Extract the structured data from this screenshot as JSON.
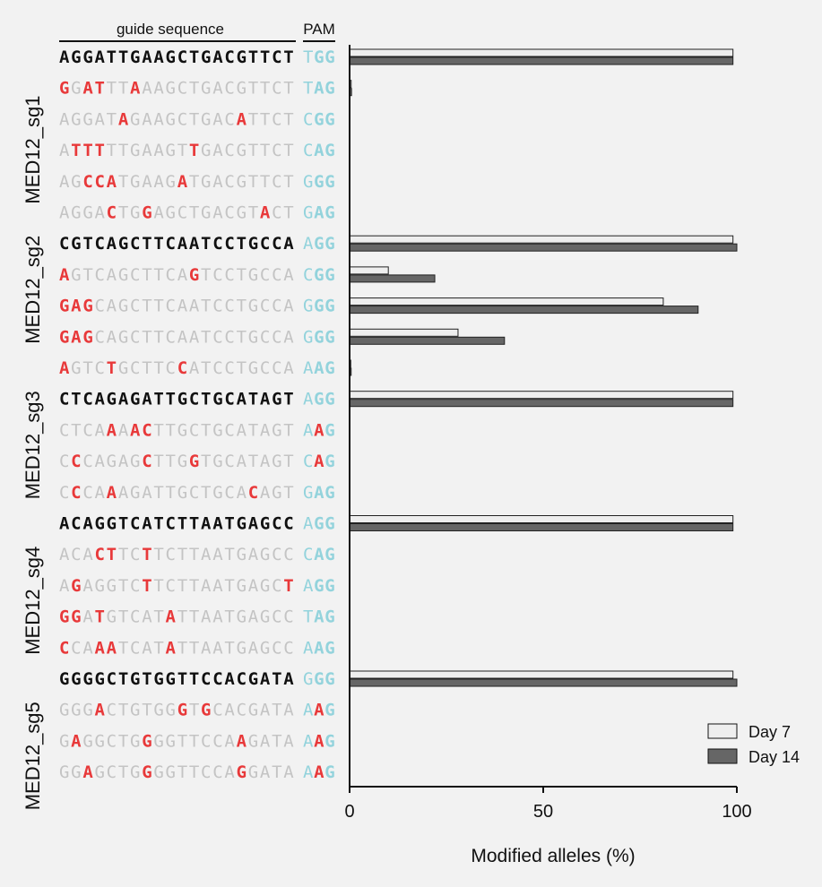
{
  "chart_data": {
    "type": "bar",
    "header": {
      "guide": "guide sequence",
      "pam": "PAM"
    },
    "xlabel": "Modified alleles (%)",
    "xlim": [
      0,
      100
    ],
    "xticks": [
      "0",
      "50",
      "100"
    ],
    "legend": {
      "position": "bottom-right",
      "entries": [
        "Day 7",
        "Day 14"
      ]
    },
    "colors": {
      "day7": "#eeeeee",
      "day14": "#666666",
      "mismatch": "#e8393a",
      "pam": "#93d3dc",
      "target": "#111111",
      "offtarget": "#c4c4c4"
    },
    "groups": [
      "MED12_sg1",
      "MED12_sg2",
      "MED12_sg3",
      "MED12_sg4",
      "MED12_sg5"
    ],
    "series": [
      {
        "name": "Day 7",
        "values": [
          99,
          0.4,
          0,
          0,
          0,
          0,
          99,
          10,
          81,
          28,
          0.3,
          99,
          0,
          0,
          0,
          99,
          0,
          0,
          0,
          0,
          99,
          0,
          0,
          0
        ]
      },
      {
        "name": "Day 14",
        "values": [
          99,
          0.5,
          0,
          0,
          0,
          0,
          100,
          22,
          90,
          40,
          0.4,
          99,
          0,
          0,
          0,
          99,
          0,
          0,
          0,
          0,
          100,
          0,
          0,
          0
        ]
      }
    ],
    "rows": [
      {
        "seq": "AGGATTGAAGCTGACGTTCT",
        "pam": "TGG",
        "target": true,
        "mm": [],
        "pam_mm": []
      },
      {
        "seq": "GGATTTAAAGCTGACGTTCT",
        "pam": "TAG",
        "target": false,
        "mm": [
          0,
          2,
          3,
          6
        ],
        "pam_mm": []
      },
      {
        "seq": "AGGATAGAAGCTGACATTCT",
        "pam": "CGG",
        "target": false,
        "mm": [
          5,
          15
        ],
        "pam_mm": []
      },
      {
        "seq": "ATTTTTGAAGTTGACGTTCT",
        "pam": "CAG",
        "target": false,
        "mm": [
          1,
          2,
          3,
          11
        ],
        "pam_mm": []
      },
      {
        "seq": "AGCCATGAAGATGACGTTCT",
        "pam": "GGG",
        "target": false,
        "mm": [
          2,
          3,
          4,
          10
        ],
        "pam_mm": []
      },
      {
        "seq": "AGGACTGGAGCTGACGTACT",
        "pam": "GAG",
        "target": false,
        "mm": [
          4,
          7,
          17
        ],
        "pam_mm": []
      },
      {
        "seq": "CGTCAGCTTCAATCCTGCCA",
        "pam": "AGG",
        "target": true,
        "mm": [],
        "pam_mm": []
      },
      {
        "seq": "AGTCAGCTTCAGTCCTGCCA",
        "pam": "CGG",
        "target": false,
        "mm": [
          0,
          11
        ],
        "pam_mm": []
      },
      {
        "seq": "GAGCAGCTTCAATCCTGCCA",
        "pam": "GGG",
        "target": false,
        "mm": [
          0,
          1,
          2
        ],
        "pam_mm": []
      },
      {
        "seq": "GAGCAGCTTCAATCCTGCCA",
        "pam": "GGG",
        "target": false,
        "mm": [
          0,
          1,
          2
        ],
        "pam_mm": []
      },
      {
        "seq": "AGTCTGCTTCCATCCTGCCA",
        "pam": "AAG",
        "target": false,
        "mm": [
          0,
          4,
          10
        ],
        "pam_mm": []
      },
      {
        "seq": "CTCAGAGATTGCTGCATAGT",
        "pam": "AGG",
        "target": true,
        "mm": [],
        "pam_mm": []
      },
      {
        "seq": "CTCAAAACTTGCTGCATAGT",
        "pam": "AAG",
        "target": false,
        "mm": [
          4,
          6,
          7
        ],
        "pam_mm": [
          1
        ]
      },
      {
        "seq": "CCCAGAGCTTGGTGCATAGT",
        "pam": "CAG",
        "target": false,
        "mm": [
          1,
          7,
          11
        ],
        "pam_mm": [
          1
        ]
      },
      {
        "seq": "CCCAAAGATTGCTGCACAGT",
        "pam": "GAG",
        "target": false,
        "mm": [
          1,
          4,
          16
        ],
        "pam_mm": []
      },
      {
        "seq": "ACAGGTCATCTTAATGAGCC",
        "pam": "AGG",
        "target": true,
        "mm": [],
        "pam_mm": []
      },
      {
        "seq": "ACACTTCTTCTTAATGAGCC",
        "pam": "CAG",
        "target": false,
        "mm": [
          3,
          4,
          7
        ],
        "pam_mm": []
      },
      {
        "seq": "AGAGGTCTTCTTAATGAGCT",
        "pam": "AGG",
        "target": false,
        "mm": [
          1,
          7,
          19
        ],
        "pam_mm": []
      },
      {
        "seq": "GGATGTCATATTAATGAGCC",
        "pam": "TAG",
        "target": false,
        "mm": [
          0,
          1,
          3,
          9
        ],
        "pam_mm": []
      },
      {
        "seq": "CCAAATCATATTAATGAGCC",
        "pam": "AAG",
        "target": false,
        "mm": [
          0,
          3,
          4,
          9
        ],
        "pam_mm": []
      },
      {
        "seq": "GGGGCTGTGGTTCCACGATA",
        "pam": "GGG",
        "target": true,
        "mm": [],
        "pam_mm": []
      },
      {
        "seq": "GGGACTGTGGGTGCACGATA",
        "pam": "AAG",
        "target": false,
        "mm": [
          3,
          10,
          12
        ],
        "pam_mm": [
          1
        ]
      },
      {
        "seq": "GAGGCTGGGGTTCCAAGATA",
        "pam": "AAG",
        "target": false,
        "mm": [
          1,
          7,
          15
        ],
        "pam_mm": [
          1
        ]
      },
      {
        "seq": "GGAGCTGGGGTTCCAGGATA",
        "pam": "AAG",
        "target": false,
        "mm": [
          2,
          7,
          15
        ],
        "pam_mm": [
          1
        ]
      }
    ]
  }
}
